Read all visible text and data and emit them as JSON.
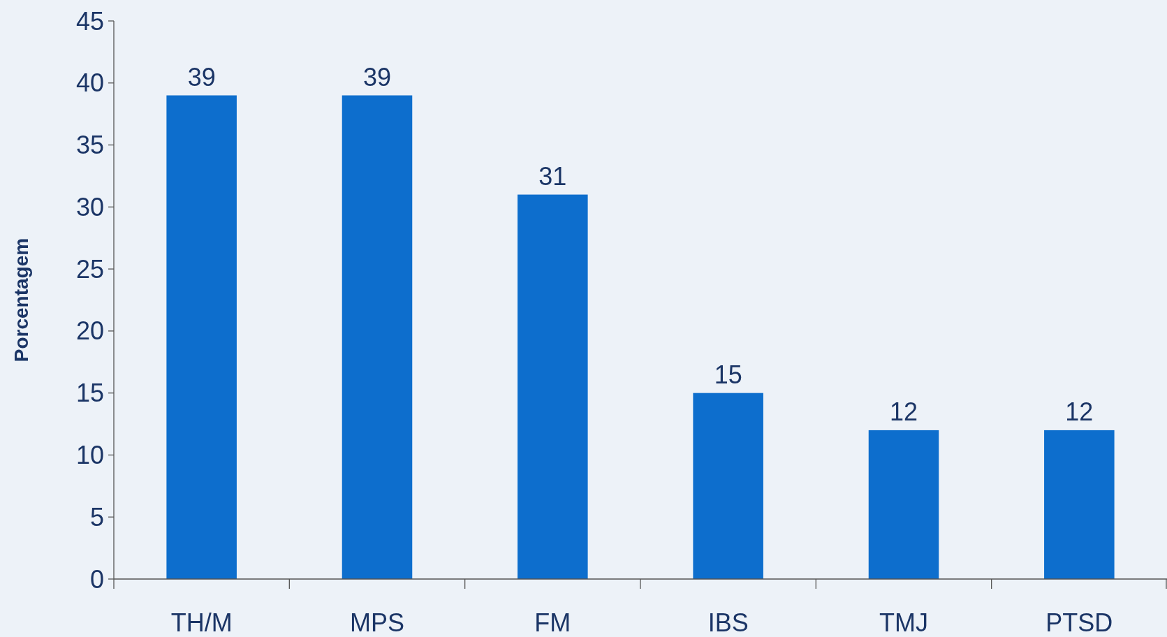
{
  "chart_data": {
    "type": "bar",
    "ylabel": "Porcentagem",
    "categories": [
      "TH/M",
      "MPS",
      "FM",
      "IBS",
      "TMJ",
      "PTSD"
    ],
    "values": [
      39,
      39,
      31,
      15,
      12,
      12
    ],
    "color": "#0d6ecd",
    "ylim": [
      0,
      45
    ],
    "yticks": [
      0,
      5,
      10,
      15,
      20,
      25,
      30,
      35,
      40,
      45
    ],
    "grid": false,
    "data_labels": true
  }
}
